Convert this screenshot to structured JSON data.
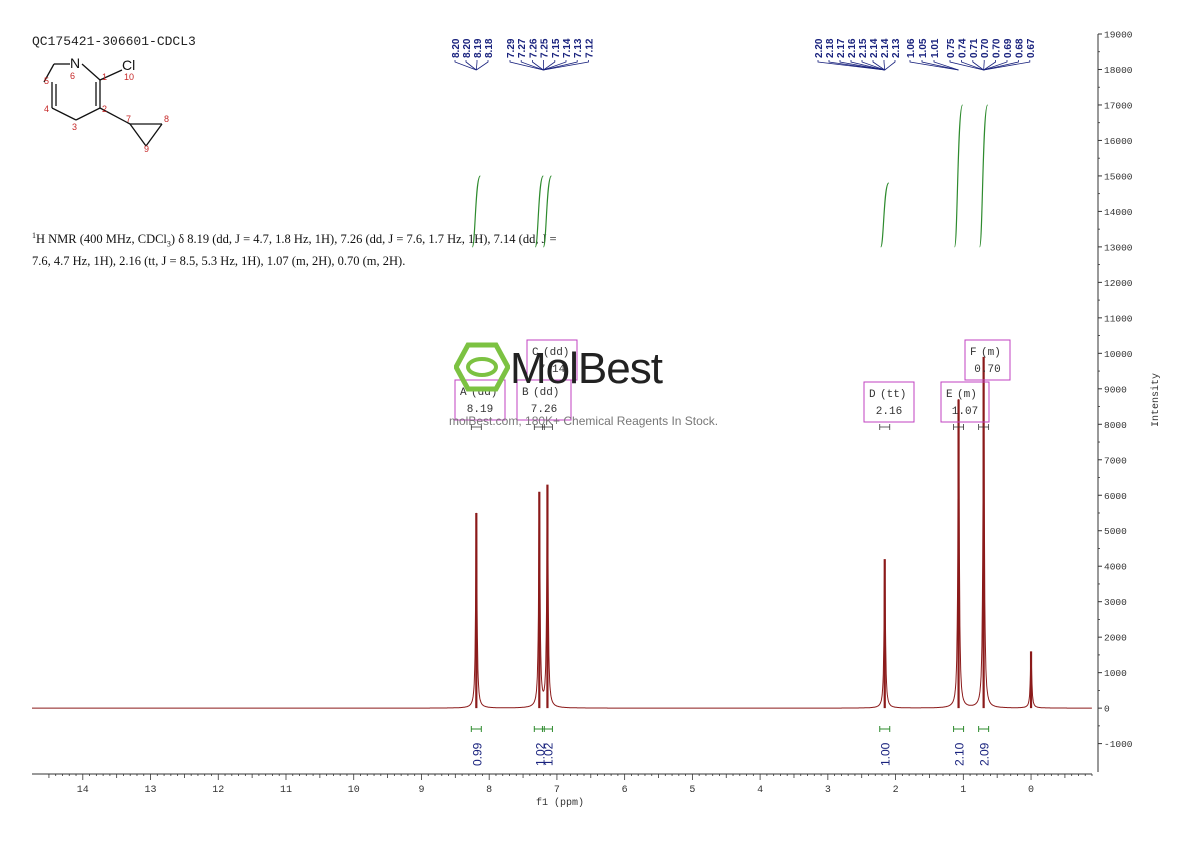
{
  "sample_id": "QC175421-306601-CDCL3",
  "description": {
    "nucleus_sup": "1",
    "prefix": "H NMR (400 MHz, CDCl",
    "sub": "3",
    "line1_rest": ") δ 8.19 (dd, J = 4.7, 1.8 Hz, 1H), 7.26 (dd, J = 7.6, 1.7 Hz, 1H), 7.14 (dd, J =",
    "line2": "7.6, 4.7 Hz, 1H), 2.16 (tt, J = 8.5, 5.3 Hz, 1H), 1.07 (m, 2H), 0.70 (m, 2H)."
  },
  "structure": {
    "atoms": [
      {
        "label": "N",
        "num": "6"
      },
      {
        "label": "Cl",
        "num": "10"
      }
    ],
    "numbers": [
      "1",
      "2",
      "3",
      "4",
      "5",
      "7",
      "8",
      "9"
    ]
  },
  "watermark": {
    "name": "MolBest",
    "tagline": "molBest.com, 180K+ Chemical Reagents In Stock."
  },
  "colors": {
    "spectrum": "#8b1a1a",
    "integral": "#2e8b2e",
    "peak_label": "#1a237e",
    "multiplet_box": "#c040c0",
    "logo": "#7cc242"
  },
  "chart_data": {
    "type": "line",
    "xlabel": "f1 (ppm)",
    "ylabel": "Intensity",
    "xlim": [
      14.75,
      -0.9
    ],
    "ylim": [
      -1800,
      19000
    ],
    "x_ticks": [
      "14",
      "13",
      "12",
      "11",
      "10",
      "9",
      "8",
      "7",
      "6",
      "5",
      "4",
      "3",
      "2",
      "1",
      "0"
    ],
    "y_ticks": [
      "19000",
      "18000",
      "17000",
      "16000",
      "15000",
      "14000",
      "13000",
      "12000",
      "11000",
      "10000",
      "9000",
      "8000",
      "7000",
      "6000",
      "5000",
      "4000",
      "3000",
      "2000",
      "1000",
      "0",
      "-1000"
    ],
    "peaks": [
      {
        "ppm": 8.19,
        "height": 5500
      },
      {
        "ppm": 7.26,
        "height": 6100
      },
      {
        "ppm": 7.14,
        "height": 6300
      },
      {
        "ppm": 2.16,
        "height": 4200
      },
      {
        "ppm": 1.07,
        "height": 8700
      },
      {
        "ppm": 0.7,
        "height": 9900
      },
      {
        "ppm": 0.0,
        "height": 1600
      }
    ],
    "peak_labels": [
      "8.20",
      "8.20",
      "8.19",
      "8.18",
      "7.29",
      "7.27",
      "7.26",
      "7.25",
      "7.15",
      "7.14",
      "7.13",
      "7.12",
      "2.20",
      "2.18",
      "2.17",
      "2.16",
      "2.15",
      "2.14",
      "2.14",
      "2.13",
      "1.06",
      "1.05",
      "1.01",
      "0.75",
      "0.74",
      "0.71",
      "0.70",
      "0.70",
      "0.69",
      "0.68",
      "0.67"
    ],
    "multiplets": [
      {
        "letter": "A",
        "type": "(dd)",
        "shift": "8.19"
      },
      {
        "letter": "B",
        "type": "(dd)",
        "shift": "7.26"
      },
      {
        "letter": "C",
        "type": "(dd)",
        "shift": "7.14"
      },
      {
        "letter": "D",
        "type": "(tt)",
        "shift": "2.16"
      },
      {
        "letter": "E",
        "type": "(m)",
        "shift": "1.07"
      },
      {
        "letter": "F",
        "type": "(m)",
        "shift": "0.70"
      }
    ],
    "integrals": [
      {
        "ppm": 8.19,
        "value": "0.99"
      },
      {
        "ppm": 7.26,
        "value": "1.02"
      },
      {
        "ppm": 7.14,
        "value": "1.02"
      },
      {
        "ppm": 2.16,
        "value": "1.00"
      },
      {
        "ppm": 1.07,
        "value": "2.10"
      },
      {
        "ppm": 0.7,
        "value": "2.09"
      }
    ]
  }
}
